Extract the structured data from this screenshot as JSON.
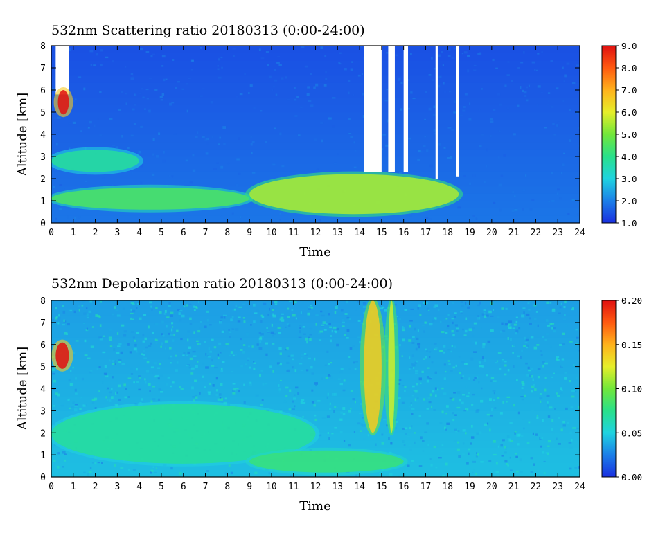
{
  "chart_data": [
    {
      "type": "heatmap",
      "title": "532nm Scattering ratio  20180313 (0:00-24:00)",
      "xlabel": "Time",
      "ylabel": "Altitude [km]",
      "xlim": [
        0,
        24
      ],
      "ylim": [
        0,
        8
      ],
      "xticks": [
        "0",
        "1",
        "2",
        "3",
        "4",
        "5",
        "6",
        "7",
        "8",
        "9",
        "10",
        "11",
        "12",
        "13",
        "14",
        "15",
        "16",
        "17",
        "18",
        "19",
        "20",
        "21",
        "22",
        "23",
        "24"
      ],
      "yticks": [
        "0",
        "1",
        "2",
        "3",
        "4",
        "5",
        "6",
        "7",
        "8"
      ],
      "colorbar": {
        "range": [
          1.0,
          9.0
        ],
        "ticks": [
          "1.0",
          "2.0",
          "3.0",
          "4.0",
          "5.0",
          "6.0",
          "7.0",
          "8.0",
          "9.0"
        ],
        "colors": [
          "#1a2fe0",
          "#1b7fe8",
          "#1fd3e0",
          "#29e08a",
          "#72e73a",
          "#e6ee2a",
          "#ffb21c",
          "#ff5a10",
          "#e01010"
        ]
      },
      "features": [
        {
          "time": [
            0.2,
            0.8
          ],
          "altitude": [
            5.8,
            8.0
          ],
          "value": "no data"
        },
        {
          "time": [
            0.3,
            0.8
          ],
          "altitude": [
            4.9,
            6.0
          ],
          "value": 9.0
        },
        {
          "time": [
            0,
            4
          ],
          "altitude": [
            2.3,
            3.3
          ],
          "value": 3.8
        },
        {
          "time": [
            0,
            9
          ],
          "altitude": [
            0.6,
            1.6
          ],
          "value": 4.5
        },
        {
          "time": [
            9,
            18.5
          ],
          "altitude": [
            0.4,
            2.2
          ],
          "value": 5.5
        },
        {
          "time": [
            14.2,
            15.0
          ],
          "altitude": [
            2.3,
            8.0
          ],
          "value": "no data"
        },
        {
          "time": [
            15.3,
            15.6
          ],
          "altitude": [
            2.3,
            8.0
          ],
          "value": "no data"
        },
        {
          "time": [
            16.0,
            16.2
          ],
          "altitude": [
            2.3,
            8.0
          ],
          "value": "no data"
        },
        {
          "time": [
            17.45,
            17.55
          ],
          "altitude": [
            2.0,
            8.0
          ],
          "value": "no data"
        },
        {
          "time": [
            18.4,
            18.5
          ],
          "altitude": [
            2.1,
            8.0
          ],
          "value": "no data"
        }
      ]
    },
    {
      "type": "heatmap",
      "title": "532nm Depolarization ratio  20180313 (0:00-24:00)",
      "xlabel": "Time",
      "ylabel": "Altitude [km]",
      "xlim": [
        0,
        24
      ],
      "ylim": [
        0,
        8
      ],
      "xticks": [
        "0",
        "1",
        "2",
        "3",
        "4",
        "5",
        "6",
        "7",
        "8",
        "9",
        "10",
        "11",
        "12",
        "13",
        "14",
        "15",
        "16",
        "17",
        "18",
        "19",
        "20",
        "21",
        "22",
        "23",
        "24"
      ],
      "yticks": [
        "0",
        "1",
        "2",
        "3",
        "4",
        "5",
        "6",
        "7",
        "8"
      ],
      "colorbar": {
        "range": [
          0.0,
          0.2
        ],
        "ticks": [
          "0.00",
          "0.05",
          "0.10",
          "0.15",
          "0.20"
        ],
        "colors": [
          "#1a2fe0",
          "#1b7fe8",
          "#1fd3e0",
          "#29e08a",
          "#72e73a",
          "#e6ee2a",
          "#ffb21c",
          "#ff5a10",
          "#e01010"
        ]
      },
      "features": [
        {
          "time": [
            0.2,
            0.8
          ],
          "altitude": [
            4.9,
            6.1
          ],
          "value": 0.2
        },
        {
          "time": [
            0,
            12
          ],
          "altitude": [
            0.6,
            3.3
          ],
          "value": 0.07
        },
        {
          "time": [
            9,
            16
          ],
          "altitude": [
            0.2,
            1.2
          ],
          "value": 0.08
        },
        {
          "time": [
            14.2,
            15.0
          ],
          "altitude": [
            2.0,
            8.0
          ],
          "value": 0.14
        },
        {
          "time": [
            15.3,
            15.6
          ],
          "altitude": [
            2.0,
            8.0
          ],
          "value": 0.12
        }
      ]
    }
  ]
}
